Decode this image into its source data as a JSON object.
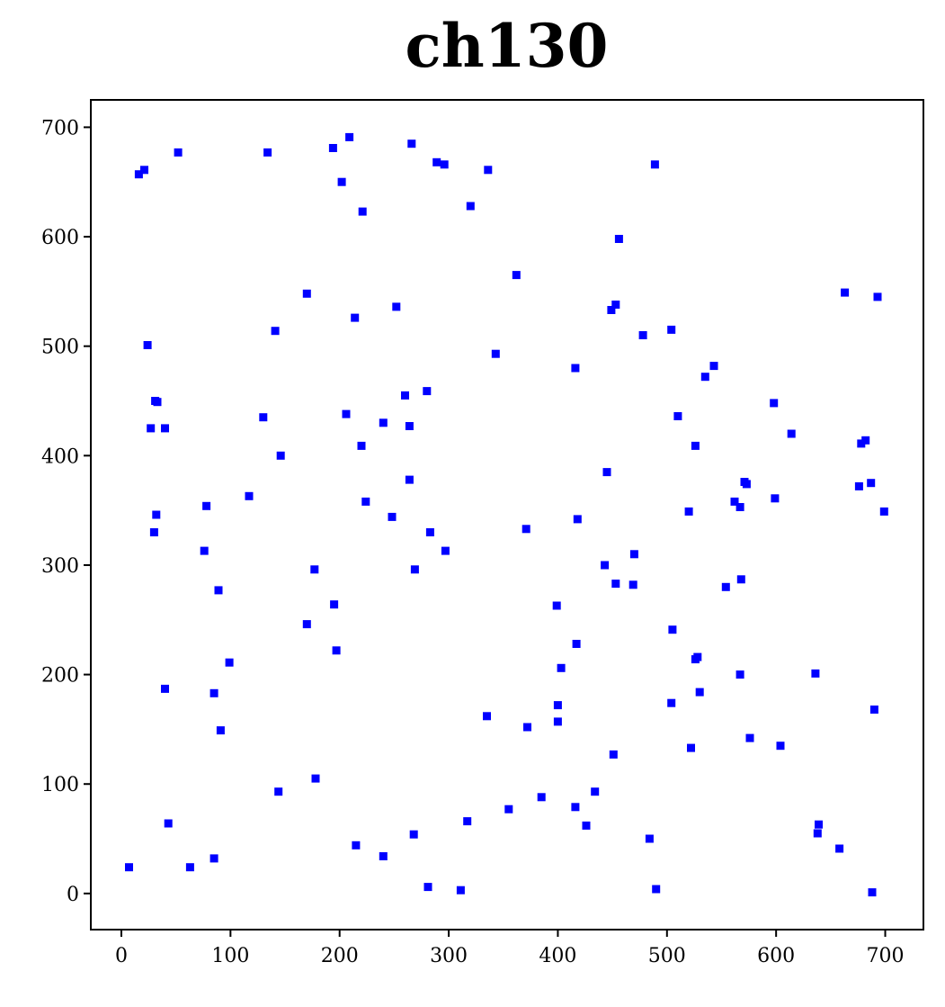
{
  "chart_data": {
    "type": "scatter",
    "title": "ch130",
    "xlabel": "",
    "ylabel": "",
    "xlim": [
      -28,
      735
    ],
    "ylim": [
      -33,
      725
    ],
    "xticks": [
      0,
      100,
      200,
      300,
      400,
      500,
      600,
      700
    ],
    "yticks": [
      0,
      100,
      200,
      300,
      400,
      500,
      600,
      700
    ],
    "xtick_labels": [
      "0",
      "100",
      "200",
      "300",
      "400",
      "500",
      "600",
      "700"
    ],
    "ytick_labels": [
      "0",
      "100",
      "200",
      "300",
      "400",
      "500",
      "600",
      "700"
    ],
    "grid": false,
    "marker": "square",
    "color": "#0000ff",
    "series": [
      {
        "points": [
          [
            7,
            24
          ],
          [
            16,
            657
          ],
          [
            21,
            661
          ],
          [
            24,
            501
          ],
          [
            27,
            425
          ],
          [
            31,
            450
          ],
          [
            33,
            449
          ],
          [
            30,
            330
          ],
          [
            32,
            346
          ],
          [
            40,
            425
          ],
          [
            40,
            187
          ],
          [
            43,
            64
          ],
          [
            52,
            677
          ],
          [
            63,
            24
          ],
          [
            76,
            313
          ],
          [
            78,
            354
          ],
          [
            85,
            183
          ],
          [
            85,
            32
          ],
          [
            89,
            277
          ],
          [
            91,
            149
          ],
          [
            99,
            211
          ],
          [
            117,
            363
          ],
          [
            130,
            435
          ],
          [
            134,
            677
          ],
          [
            141,
            514
          ],
          [
            144,
            93
          ],
          [
            146,
            400
          ],
          [
            170,
            548
          ],
          [
            170,
            246
          ],
          [
            177,
            296
          ],
          [
            178,
            105
          ],
          [
            194,
            681
          ],
          [
            195,
            264
          ],
          [
            197,
            222
          ],
          [
            202,
            650
          ],
          [
            206,
            438
          ],
          [
            209,
            691
          ],
          [
            214,
            526
          ],
          [
            215,
            44
          ],
          [
            220,
            409
          ],
          [
            221,
            623
          ],
          [
            224,
            358
          ],
          [
            240,
            34
          ],
          [
            240,
            430
          ],
          [
            248,
            344
          ],
          [
            252,
            536
          ],
          [
            260,
            455
          ],
          [
            264,
            427
          ],
          [
            264,
            378
          ],
          [
            266,
            685
          ],
          [
            268,
            54
          ],
          [
            269,
            296
          ],
          [
            280,
            459
          ],
          [
            281,
            6
          ],
          [
            283,
            330
          ],
          [
            289,
            668
          ],
          [
            296,
            666
          ],
          [
            297,
            313
          ],
          [
            311,
            3
          ],
          [
            317,
            66
          ],
          [
            320,
            628
          ],
          [
            335,
            162
          ],
          [
            336,
            661
          ],
          [
            343,
            493
          ],
          [
            355,
            77
          ],
          [
            362,
            565
          ],
          [
            371,
            333
          ],
          [
            372,
            152
          ],
          [
            385,
            88
          ],
          [
            399,
            263
          ],
          [
            400,
            172
          ],
          [
            400,
            157
          ],
          [
            403,
            206
          ],
          [
            416,
            480
          ],
          [
            416,
            79
          ],
          [
            417,
            228
          ],
          [
            418,
            342
          ],
          [
            426,
            62
          ],
          [
            434,
            93
          ],
          [
            443,
            300
          ],
          [
            445,
            385
          ],
          [
            449,
            533
          ],
          [
            451,
            127
          ],
          [
            453,
            538
          ],
          [
            453,
            283
          ],
          [
            456,
            598
          ],
          [
            469,
            282
          ],
          [
            470,
            310
          ],
          [
            478,
            510
          ],
          [
            484,
            50
          ],
          [
            489,
            666
          ],
          [
            490,
            4
          ],
          [
            504,
            515
          ],
          [
            504,
            174
          ],
          [
            505,
            241
          ],
          [
            510,
            436
          ],
          [
            520,
            349
          ],
          [
            522,
            133
          ],
          [
            526,
            409
          ],
          [
            526,
            214
          ],
          [
            528,
            216
          ],
          [
            530,
            184
          ],
          [
            535,
            472
          ],
          [
            543,
            482
          ],
          [
            554,
            280
          ],
          [
            562,
            358
          ],
          [
            567,
            200
          ],
          [
            567,
            353
          ],
          [
            568,
            287
          ],
          [
            571,
            376
          ],
          [
            573,
            374
          ],
          [
            576,
            142
          ],
          [
            598,
            448
          ],
          [
            599,
            361
          ],
          [
            604,
            135
          ],
          [
            614,
            420
          ],
          [
            636,
            201
          ],
          [
            638,
            55
          ],
          [
            639,
            63
          ],
          [
            658,
            41
          ],
          [
            663,
            549
          ],
          [
            676,
            372
          ],
          [
            678,
            411
          ],
          [
            682,
            414
          ],
          [
            687,
            375
          ],
          [
            688,
            1
          ],
          [
            690,
            168
          ],
          [
            693,
            545
          ],
          [
            699,
            349
          ]
        ]
      }
    ]
  }
}
